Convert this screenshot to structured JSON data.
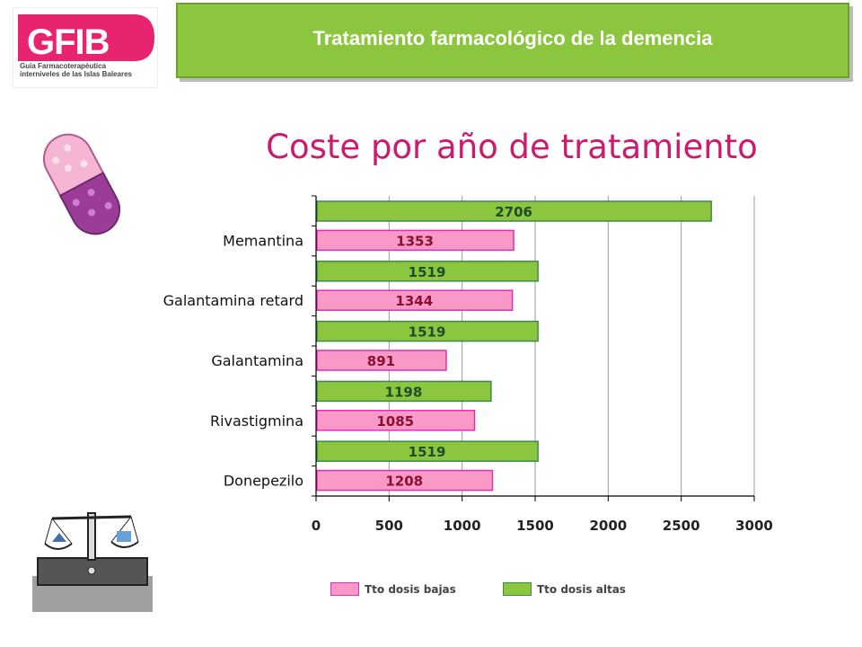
{
  "header": {
    "logo_text": "GFIB",
    "logo_subtitle_line1": "Guia Farmacoterapèutica",
    "logo_subtitle_line2": "interniveles de las Islas Baleares",
    "title": "Tratamiento farmacológico de la demencia"
  },
  "colors": {
    "header_green": "#8cc63f",
    "title_magenta": "#cc1a6e",
    "bar_pink": "#f899c8",
    "bar_pink_border": "#e02fb4",
    "bar_green": "#8cc63f",
    "bar_green_border": "#3e8a4a"
  },
  "icons": [
    "pill-capsule-icon",
    "balance-scale-icon"
  ],
  "chart_data": {
    "type": "bar",
    "orientation": "horizontal",
    "title": "Coste por año de tratamiento",
    "categories": [
      "Memantina",
      "Galantamina retard",
      "Galantamina",
      "Rivastigmina",
      "Donepezilo"
    ],
    "series": [
      {
        "name": "Tto dosis bajas",
        "values": [
          1353,
          1344,
          891,
          1085,
          1208
        ]
      },
      {
        "name": "Tto dosis altas",
        "values": [
          2706,
          1519,
          1519,
          1198,
          1519
        ]
      }
    ],
    "xlim": [
      0,
      3000
    ],
    "xticks": [
      "0",
      "500",
      "1000",
      "1500",
      "2000",
      "2500",
      "3000"
    ],
    "grid": "vertical",
    "legend_placement": "bottom"
  }
}
